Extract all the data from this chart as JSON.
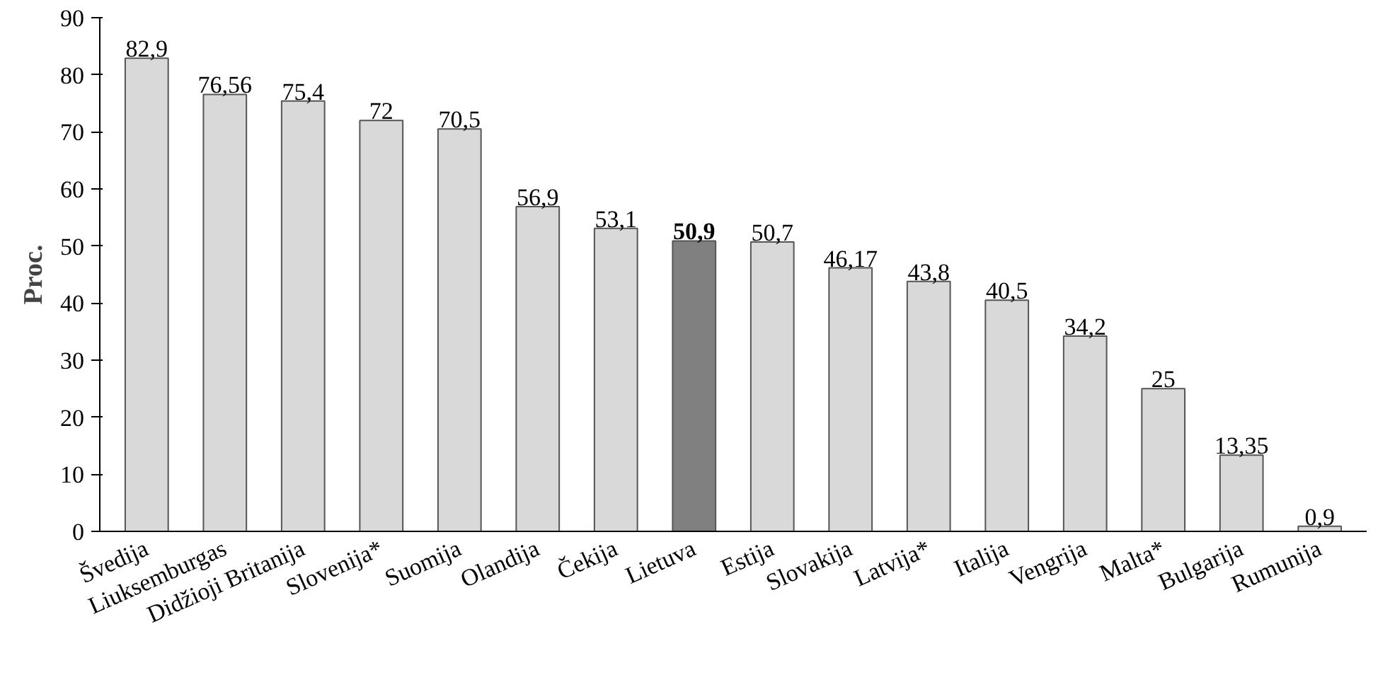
{
  "chart_data": {
    "type": "bar",
    "ylabel": "Proc.",
    "categories": [
      "Švedija",
      "Liuksemburgas",
      "Didžioji Britanija",
      "Slovenija*",
      "Suomija",
      "Olandija",
      "Čekija",
      "Lietuva",
      "Estija",
      "Slovakija",
      "Latvija*",
      "Italija",
      "Vengrija",
      "Malta*",
      "Bulgarija",
      "Rumunija"
    ],
    "values": [
      82.9,
      76.56,
      75.4,
      72,
      70.5,
      56.9,
      53.1,
      50.9,
      50.7,
      46.17,
      43.8,
      40.5,
      34.2,
      25,
      13.35,
      0.9
    ],
    "value_labels": [
      "82,9",
      "76,56",
      "75,4",
      "72",
      "70,5",
      "56,9",
      "53,1",
      "50,9",
      "50,7",
      "46,17",
      "43,8",
      "40,5",
      "34,2",
      "25",
      "13,35",
      "0,9"
    ],
    "colors": [
      "#d9d9d9",
      "#d9d9d9",
      "#d9d9d9",
      "#d9d9d9",
      "#d9d9d9",
      "#d9d9d9",
      "#d9d9d9",
      "#808080",
      "#d9d9d9",
      "#d9d9d9",
      "#d9d9d9",
      "#d9d9d9",
      "#d9d9d9",
      "#d9d9d9",
      "#d9d9d9",
      "#d9d9d9"
    ],
    "ylim": [
      0,
      90
    ],
    "yticks": [
      0,
      10,
      20,
      30,
      40,
      50,
      60,
      70,
      80,
      90
    ],
    "grid": false
  }
}
